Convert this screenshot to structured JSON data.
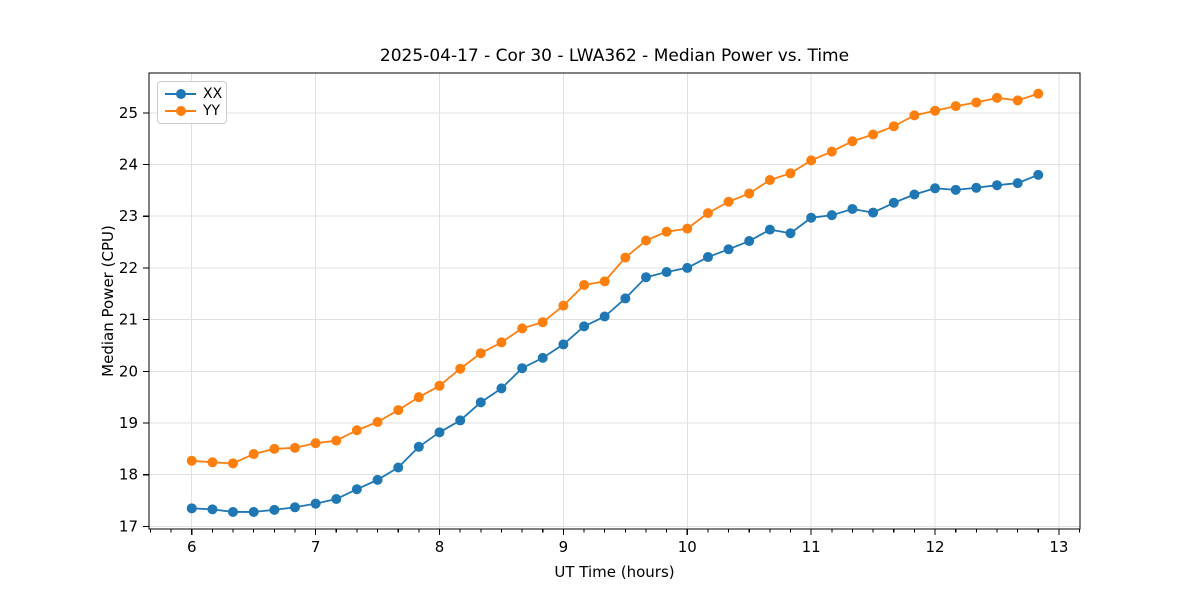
{
  "chart_data": {
    "type": "line",
    "title": "2025-04-17 - Cor 30 - LWA362 - Median Power vs. Time",
    "xlabel": "UT Time (hours)",
    "ylabel": "Median Power (CPU)",
    "xlim": [
      5.655,
      13.17
    ],
    "ylim": [
      16.95,
      25.77
    ],
    "xticks": [
      6,
      7,
      8,
      9,
      10,
      11,
      12,
      13
    ],
    "yticks": [
      17,
      18,
      19,
      20,
      21,
      22,
      23,
      24,
      25
    ],
    "x_minor_tick_step": 0.166667,
    "grid": true,
    "legend_position": "upper-left",
    "marker": "circle",
    "x": [
      6.0,
      6.167,
      6.333,
      6.5,
      6.667,
      6.833,
      7.0,
      7.167,
      7.333,
      7.5,
      7.667,
      7.833,
      8.0,
      8.167,
      8.333,
      8.5,
      8.667,
      8.833,
      9.0,
      9.167,
      9.333,
      9.5,
      9.667,
      9.833,
      10.0,
      10.167,
      10.333,
      10.5,
      10.667,
      10.833,
      11.0,
      11.167,
      11.333,
      11.5,
      11.667,
      11.833,
      12.0,
      12.167,
      12.333,
      12.5,
      12.667,
      12.833
    ],
    "series": [
      {
        "name": "XX",
        "color": "#1f77b4",
        "values": [
          17.35,
          17.33,
          17.28,
          17.28,
          17.32,
          17.37,
          17.44,
          17.53,
          17.72,
          17.9,
          18.14,
          18.54,
          18.82,
          19.05,
          19.4,
          19.67,
          20.06,
          20.26,
          20.52,
          20.87,
          21.06,
          21.41,
          21.82,
          21.92,
          22.0,
          22.21,
          22.36,
          22.52,
          22.74,
          22.67,
          22.97,
          23.02,
          23.14,
          23.07,
          23.26,
          23.42,
          23.54,
          23.51,
          23.55,
          23.6,
          23.64,
          23.8
        ]
      },
      {
        "name": "YY",
        "color": "#ff7f0e",
        "values": [
          18.27,
          18.24,
          18.22,
          18.4,
          18.5,
          18.52,
          18.61,
          18.66,
          18.86,
          19.02,
          19.25,
          19.5,
          19.72,
          20.05,
          20.35,
          20.56,
          20.83,
          20.95,
          21.27,
          21.67,
          21.74,
          22.2,
          22.53,
          22.7,
          22.76,
          23.06,
          23.28,
          23.44,
          23.7,
          23.83,
          24.08,
          24.25,
          24.45,
          24.58,
          24.74,
          24.95,
          25.04,
          25.13,
          25.2,
          25.29,
          25.24,
          25.37
        ]
      }
    ]
  },
  "style": {
    "grid_color": "#e0e0e0",
    "spine_color": "#000000",
    "tick_color": "#000000",
    "text_color": "#000000",
    "background": "#ffffff"
  }
}
